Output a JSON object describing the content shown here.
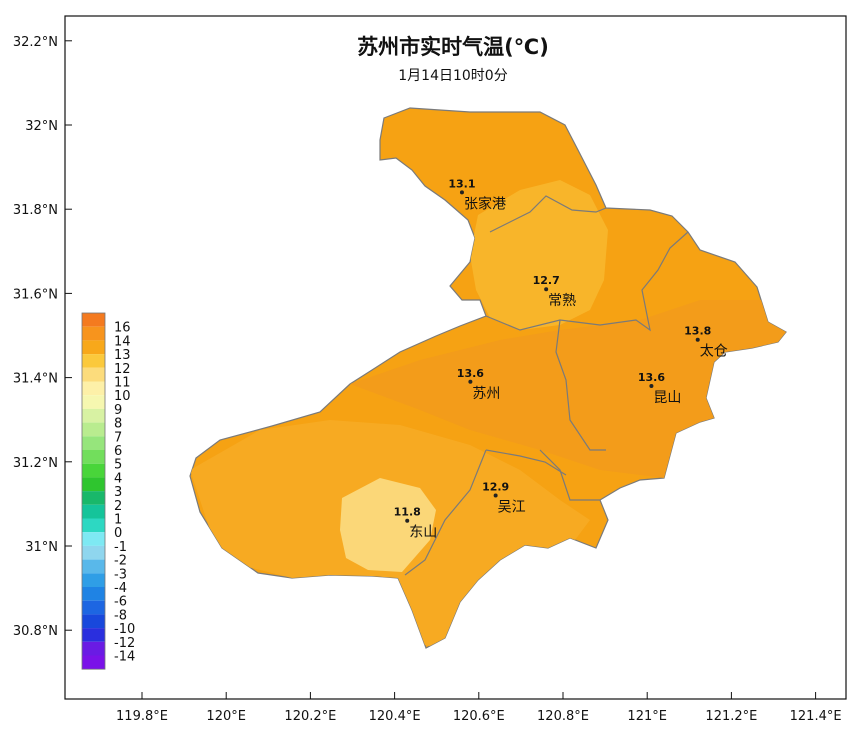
{
  "title": "苏州市实时气温(℃)",
  "subtitle": "1月14日10时0分",
  "y_axis_ticks": [
    "32.2°N",
    "32°N",
    "31.8°N",
    "31.6°N",
    "31.4°N",
    "31.2°N",
    "31°N",
    "30.8°N"
  ],
  "x_axis_ticks": [
    "119.8°E",
    "120°E",
    "120.2°E",
    "120.4°E",
    "120.6°E",
    "120.8°E",
    "121°E",
    "121.2°E",
    "121.4°E"
  ],
  "stations": [
    {
      "name": "张家港",
      "value": "13.1",
      "lon": 120.56,
      "lat": 31.84
    },
    {
      "name": "常熟",
      "value": "12.7",
      "lon": 120.76,
      "lat": 31.61
    },
    {
      "name": "太仓",
      "value": "13.8",
      "lon": 121.12,
      "lat": 31.49
    },
    {
      "name": "苏州",
      "value": "13.6",
      "lon": 120.58,
      "lat": 31.39
    },
    {
      "name": "昆山",
      "value": "13.6",
      "lon": 121.01,
      "lat": 31.38
    },
    {
      "name": "吴江",
      "value": "12.9",
      "lon": 120.64,
      "lat": 31.12
    },
    {
      "name": "东山",
      "value": "11.8",
      "lon": 120.43,
      "lat": 31.06
    }
  ],
  "legend": {
    "labels": [
      "16",
      "14",
      "13",
      "12",
      "11",
      "10",
      "9",
      "8",
      "7",
      "6",
      "5",
      "4",
      "3",
      "2",
      "1",
      "0",
      "-1",
      "-2",
      "-3",
      "-4",
      "-6",
      "-8",
      "-10",
      "-12",
      "-14"
    ],
    "colors": [
      "#f47a1f",
      "#f7941d",
      "#f8a81a",
      "#fbc93c",
      "#fcdc7c",
      "#fdf0a8",
      "#f6f7b0",
      "#d8f2a3",
      "#b9ec8f",
      "#96e57c",
      "#72de5c",
      "#49d53a",
      "#2fc52f",
      "#19b86a",
      "#15c49a",
      "#2dd8c2",
      "#7ee9f3",
      "#8fd6ee",
      "#59b8ea",
      "#2f9ee6",
      "#1f83e4",
      "#1d66e2",
      "#1848dc",
      "#2a2fde",
      "#6a1be4",
      "#7a12e8"
    ]
  },
  "colors": {
    "base_fill": "#f6a213",
    "warm_zone": "#f39c1a",
    "mid_zone": "#f7aa22",
    "cool_zone": "#f8bb30",
    "coolest_zone": "#fbd778"
  }
}
